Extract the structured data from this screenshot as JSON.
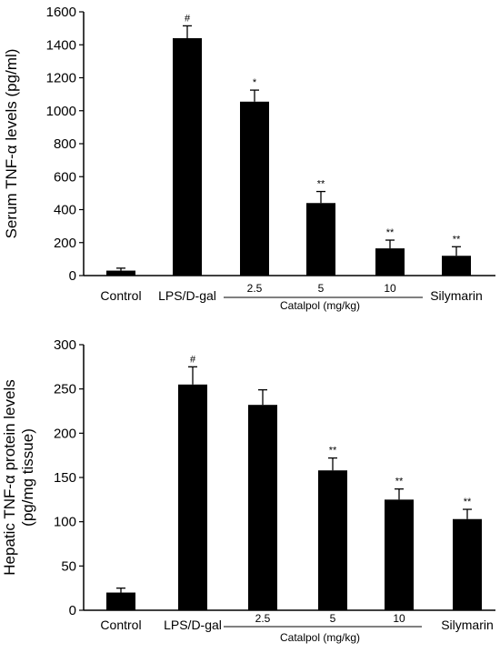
{
  "chart_data": [
    {
      "type": "bar",
      "categories": [
        "Control",
        "LPS/D-gal",
        "2.5",
        "5",
        "10",
        "Silymarin"
      ],
      "group_label": "Catalpol (mg/kg)",
      "ylabel": "Serum TNF-α levels (pg/ml)",
      "ylim": [
        0,
        1600
      ],
      "yticks": [
        0,
        200,
        400,
        600,
        800,
        1000,
        1200,
        1400,
        1600
      ],
      "values": [
        30,
        1440,
        1055,
        440,
        165,
        120
      ],
      "errors": [
        15,
        75,
        70,
        70,
        50,
        55
      ],
      "annotations": [
        "",
        "#",
        "*",
        "**",
        "**",
        "**"
      ],
      "bar_color": "#000000"
    },
    {
      "type": "bar",
      "categories": [
        "Control",
        "LPS/D-gal",
        "2.5",
        "5",
        "10",
        "Silymarin"
      ],
      "group_label": "Catalpol (mg/kg)",
      "ylabel": [
        "Hepatic TNF-α protein levels",
        "(pg/mg tissue)"
      ],
      "ylim": [
        0,
        300
      ],
      "yticks": [
        0,
        50,
        100,
        150,
        200,
        250,
        300
      ],
      "values": [
        20,
        255,
        232,
        158,
        125,
        103
      ],
      "errors": [
        5,
        20,
        17,
        14,
        12,
        11
      ],
      "annotations": [
        "",
        "#",
        "",
        "**",
        "**",
        "**"
      ],
      "bar_color": "#000000"
    }
  ]
}
